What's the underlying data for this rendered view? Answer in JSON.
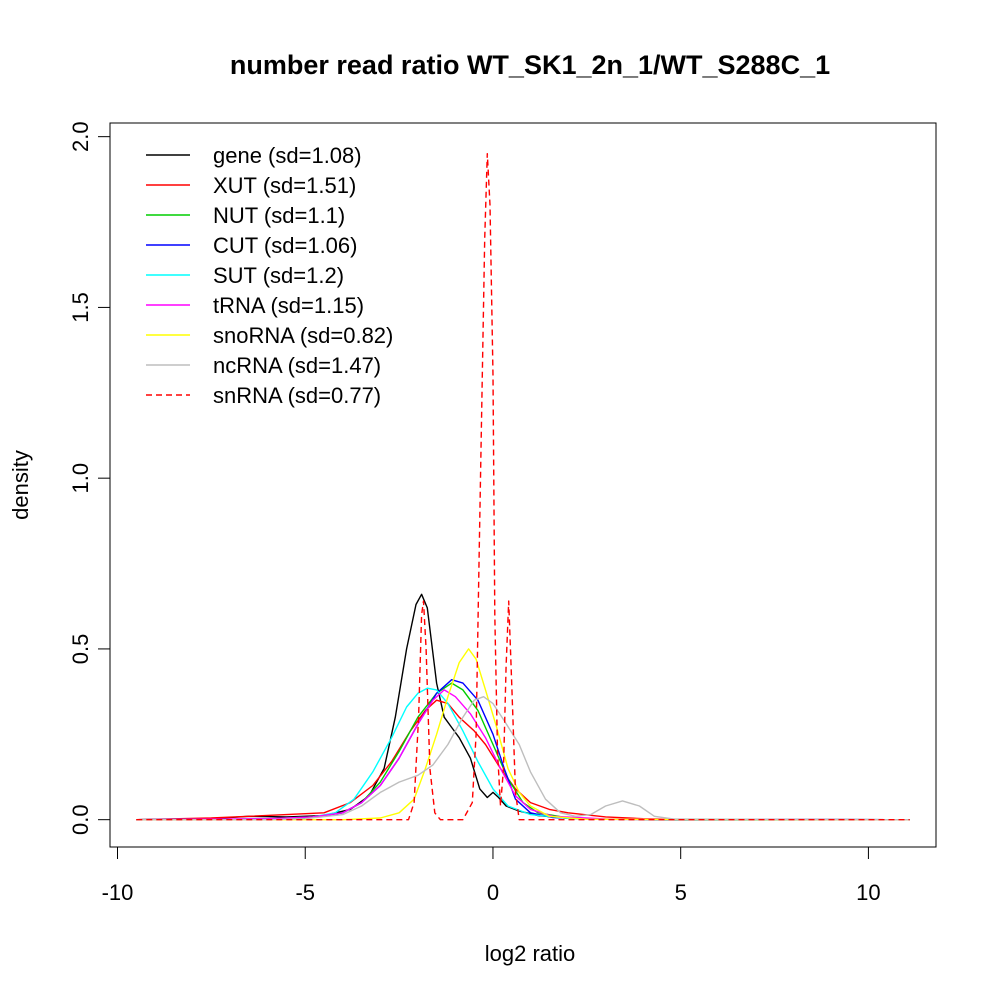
{
  "chart_data": {
    "type": "line",
    "title": "number read ratio WT_SK1_2n_1/WT_S288C_1",
    "xlabel": "log2 ratio",
    "ylabel": "density",
    "xlim": [
      -10.2,
      11.8
    ],
    "ylim": [
      -0.08,
      2.04
    ],
    "x_ticks": [
      -10,
      -5,
      0,
      5,
      10
    ],
    "x_tick_labels": [
      "-10",
      "-5",
      "0",
      "5",
      "10"
    ],
    "y_ticks": [
      0,
      0.5,
      1,
      1.5,
      2
    ],
    "y_tick_labels": [
      "0.0",
      "0.5",
      "1.0",
      "1.5",
      "2.0"
    ],
    "grid": false,
    "legend_position": "top-left",
    "series": [
      {
        "name": "gene (sd=1.08)",
        "color": "#000000",
        "dash": "solid",
        "points": [
          [
            -9.5,
            0
          ],
          [
            -7.5,
            0.003
          ],
          [
            -6.5,
            0.01
          ],
          [
            -5.5,
            0.008
          ],
          [
            -4.5,
            0.012
          ],
          [
            -3.8,
            0.03
          ],
          [
            -3.3,
            0.07
          ],
          [
            -2.9,
            0.15
          ],
          [
            -2.6,
            0.3
          ],
          [
            -2.3,
            0.5
          ],
          [
            -2.05,
            0.63
          ],
          [
            -1.9,
            0.66
          ],
          [
            -1.75,
            0.62
          ],
          [
            -1.5,
            0.4
          ],
          [
            -1.3,
            0.3
          ],
          [
            -1.1,
            0.27
          ],
          [
            -0.9,
            0.24
          ],
          [
            -0.6,
            0.18
          ],
          [
            -0.35,
            0.09
          ],
          [
            -0.15,
            0.065
          ],
          [
            0,
            0.08
          ],
          [
            0.15,
            0.065
          ],
          [
            0.35,
            0.04
          ],
          [
            0.7,
            0.025
          ],
          [
            1.2,
            0.012
          ],
          [
            2,
            0.004
          ],
          [
            3,
            0.001
          ],
          [
            5,
            0
          ],
          [
            11.1,
            0
          ]
        ]
      },
      {
        "name": "XUT (sd=1.51)",
        "color": "#ff0000",
        "dash": "solid",
        "points": [
          [
            -9.5,
            0
          ],
          [
            -7.5,
            0.005
          ],
          [
            -6.5,
            0.01
          ],
          [
            -5.5,
            0.015
          ],
          [
            -4.5,
            0.02
          ],
          [
            -3.8,
            0.05
          ],
          [
            -3.2,
            0.1
          ],
          [
            -2.7,
            0.17
          ],
          [
            -2.2,
            0.26
          ],
          [
            -1.8,
            0.32
          ],
          [
            -1.5,
            0.35
          ],
          [
            -1.2,
            0.34
          ],
          [
            -0.9,
            0.3
          ],
          [
            -0.5,
            0.26
          ],
          [
            -0.2,
            0.22
          ],
          [
            0.2,
            0.15
          ],
          [
            0.6,
            0.09
          ],
          [
            1,
            0.05
          ],
          [
            1.5,
            0.03
          ],
          [
            2,
            0.02
          ],
          [
            3,
            0.008
          ],
          [
            4,
            0.003
          ],
          [
            5,
            0.001
          ],
          [
            11.1,
            0
          ]
        ]
      },
      {
        "name": "NUT (sd=1.1)",
        "color": "#00cd00",
        "dash": "solid",
        "points": [
          [
            -9.5,
            0
          ],
          [
            -6,
            0.002
          ],
          [
            -4.8,
            0.008
          ],
          [
            -4,
            0.02
          ],
          [
            -3.5,
            0.05
          ],
          [
            -3,
            0.11
          ],
          [
            -2.5,
            0.2
          ],
          [
            -2,
            0.3
          ],
          [
            -1.5,
            0.37
          ],
          [
            -1.1,
            0.4
          ],
          [
            -0.8,
            0.38
          ],
          [
            -0.4,
            0.32
          ],
          [
            0,
            0.22
          ],
          [
            0.4,
            0.12
          ],
          [
            0.8,
            0.05
          ],
          [
            1.2,
            0.02
          ],
          [
            2,
            0.005
          ],
          [
            3,
            0.001
          ],
          [
            11.1,
            0
          ]
        ]
      },
      {
        "name": "CUT (sd=1.06)",
        "color": "#0000ff",
        "dash": "solid",
        "points": [
          [
            -9.5,
            0
          ],
          [
            -6,
            0.002
          ],
          [
            -4.8,
            0.006
          ],
          [
            -4,
            0.02
          ],
          [
            -3.5,
            0.05
          ],
          [
            -3,
            0.1
          ],
          [
            -2.5,
            0.18
          ],
          [
            -2,
            0.28
          ],
          [
            -1.5,
            0.37
          ],
          [
            -1.1,
            0.41
          ],
          [
            -0.8,
            0.4
          ],
          [
            -0.4,
            0.35
          ],
          [
            0,
            0.25
          ],
          [
            0.3,
            0.15
          ],
          [
            0.6,
            0.06
          ],
          [
            1,
            0.02
          ],
          [
            1.6,
            0.006
          ],
          [
            3,
            0.001
          ],
          [
            11.1,
            0
          ]
        ]
      },
      {
        "name": "SUT (sd=1.2)",
        "color": "#00ffff",
        "dash": "solid",
        "points": [
          [
            -9.5,
            0
          ],
          [
            -6,
            0.002
          ],
          [
            -4.8,
            0.008
          ],
          [
            -4.2,
            0.02
          ],
          [
            -3.7,
            0.06
          ],
          [
            -3.2,
            0.14
          ],
          [
            -2.7,
            0.24
          ],
          [
            -2.3,
            0.33
          ],
          [
            -2,
            0.37
          ],
          [
            -1.75,
            0.385
          ],
          [
            -1.5,
            0.38
          ],
          [
            -1.2,
            0.34
          ],
          [
            -0.8,
            0.26
          ],
          [
            -0.4,
            0.17
          ],
          [
            0,
            0.09
          ],
          [
            0.4,
            0.04
          ],
          [
            1,
            0.015
          ],
          [
            2,
            0.004
          ],
          [
            3,
            0.001
          ],
          [
            11.1,
            0
          ]
        ]
      },
      {
        "name": "tRNA (sd=1.15)",
        "color": "#ff00ff",
        "dash": "solid",
        "points": [
          [
            -9.5,
            0
          ],
          [
            -6,
            0.003
          ],
          [
            -4.8,
            0.008
          ],
          [
            -4,
            0.02
          ],
          [
            -3.5,
            0.05
          ],
          [
            -3,
            0.1
          ],
          [
            -2.5,
            0.18
          ],
          [
            -2,
            0.28
          ],
          [
            -1.6,
            0.35
          ],
          [
            -1.3,
            0.38
          ],
          [
            -1,
            0.36
          ],
          [
            -0.6,
            0.31
          ],
          [
            -0.2,
            0.24
          ],
          [
            0.2,
            0.15
          ],
          [
            0.6,
            0.07
          ],
          [
            1,
            0.03
          ],
          [
            1.6,
            0.01
          ],
          [
            3,
            0.002
          ],
          [
            11.1,
            0
          ]
        ]
      },
      {
        "name": "snoRNA (sd=0.82)",
        "color": "#ffff00",
        "dash": "solid",
        "points": [
          [
            -9.5,
            0
          ],
          [
            -4,
            0
          ],
          [
            -3,
            0.005
          ],
          [
            -2.5,
            0.02
          ],
          [
            -2.1,
            0.06
          ],
          [
            -1.8,
            0.15
          ],
          [
            -1.5,
            0.25
          ],
          [
            -1.2,
            0.36
          ],
          [
            -0.9,
            0.46
          ],
          [
            -0.65,
            0.5
          ],
          [
            -0.45,
            0.47
          ],
          [
            -0.2,
            0.38
          ],
          [
            0.1,
            0.27
          ],
          [
            0.4,
            0.15
          ],
          [
            0.7,
            0.08
          ],
          [
            1,
            0.04
          ],
          [
            1.5,
            0.01
          ],
          [
            2.5,
            0.001
          ],
          [
            11.1,
            0
          ]
        ]
      },
      {
        "name": "ncRNA (sd=1.47)",
        "color": "#bebebe",
        "dash": "solid",
        "points": [
          [
            -9.5,
            0
          ],
          [
            -6,
            0
          ],
          [
            -5,
            0.003
          ],
          [
            -4,
            0.015
          ],
          [
            -3.5,
            0.04
          ],
          [
            -3,
            0.08
          ],
          [
            -2.5,
            0.11
          ],
          [
            -2,
            0.13
          ],
          [
            -1.6,
            0.16
          ],
          [
            -1.2,
            0.22
          ],
          [
            -0.8,
            0.3
          ],
          [
            -0.5,
            0.35
          ],
          [
            -0.25,
            0.36
          ],
          [
            0,
            0.34
          ],
          [
            0.3,
            0.29
          ],
          [
            0.7,
            0.22
          ],
          [
            1,
            0.14
          ],
          [
            1.4,
            0.06
          ],
          [
            1.8,
            0.02
          ],
          [
            2.2,
            0.01
          ],
          [
            2.6,
            0.015
          ],
          [
            3,
            0.04
          ],
          [
            3.45,
            0.055
          ],
          [
            3.9,
            0.04
          ],
          [
            4.3,
            0.01
          ],
          [
            4.8,
            0.002
          ],
          [
            11.1,
            0
          ]
        ]
      },
      {
        "name": "snRNA (sd=0.77)",
        "color": "#ff0000",
        "dash": "dashed",
        "points": [
          [
            -9.5,
            0
          ],
          [
            -2.25,
            0
          ],
          [
            -2.1,
            0.05
          ],
          [
            -1.98,
            0.3
          ],
          [
            -1.9,
            0.6
          ],
          [
            -1.85,
            0.64
          ],
          [
            -1.78,
            0.5
          ],
          [
            -1.68,
            0.15
          ],
          [
            -1.55,
            0.02
          ],
          [
            -1.4,
            0
          ],
          [
            -0.8,
            0
          ],
          [
            -0.55,
            0.05
          ],
          [
            -0.45,
            0.25
          ],
          [
            -0.38,
            0.7
          ],
          [
            -0.3,
            1.2
          ],
          [
            -0.22,
            1.7
          ],
          [
            -0.15,
            1.95
          ],
          [
            -0.08,
            1.8
          ],
          [
            0,
            1.3
          ],
          [
            0.05,
            0.6
          ],
          [
            0.12,
            0.2
          ],
          [
            0.2,
            0.04
          ],
          [
            0.28,
            0.15
          ],
          [
            0.35,
            0.45
          ],
          [
            0.42,
            0.64
          ],
          [
            0.5,
            0.4
          ],
          [
            0.6,
            0.08
          ],
          [
            0.7,
            0
          ],
          [
            11.1,
            0
          ]
        ]
      }
    ]
  }
}
